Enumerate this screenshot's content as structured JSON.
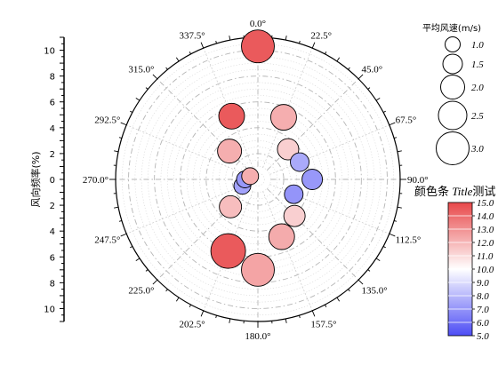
{
  "chart_data": {
    "type": "polar-bubble",
    "radial_axis": {
      "label": "风向频率(%)",
      "range": [
        0,
        11
      ],
      "tick_labels": [
        "0",
        "2",
        "4",
        "6",
        "8",
        "10"
      ],
      "tick_values": [
        0,
        2,
        4,
        6,
        8,
        10
      ]
    },
    "angle_labels": [
      "0.0°",
      "22.5°",
      "45.0°",
      "67.5°",
      "90.0°",
      "112.5°",
      "135.0°",
      "157.5°",
      "180.0°",
      "202.5°",
      "225.0°",
      "247.5°",
      "270.0°",
      "292.5°",
      "315.0°",
      "337.5°"
    ],
    "angles": [
      0,
      22.5,
      45,
      67.5,
      90,
      112.5,
      135,
      157.5,
      180,
      202.5,
      225,
      247.5,
      270,
      292.5,
      315,
      337.5
    ],
    "size_legend": {
      "title": "平均风速(m/s)",
      "labels": [
        "1.0",
        "1.5",
        "2.0",
        "2.5",
        "3.0"
      ],
      "values": [
        1.0,
        1.5,
        2.0,
        2.5,
        3.0
      ]
    },
    "colorbar": {
      "title": "颜色条 Title测试",
      "title_plain": "颜色条 ",
      "title_italic": "Title",
      "title_tail": "测试",
      "labels": [
        "15.0",
        "14.0",
        "13.0",
        "12.0",
        "11.0",
        "10.0",
        "9.0",
        "8.0",
        "7.0",
        "6.0",
        "5.0"
      ],
      "range": [
        5,
        15
      ],
      "colors": {
        "low": "#4d4df5",
        "mid": "#ffffff",
        "high": "#e8484a"
      }
    },
    "points": [
      {
        "direction": 0,
        "frequency": 10.3,
        "speed": 3.0,
        "color_value": 14.5
      },
      {
        "direction": 22.5,
        "frequency": 5.2,
        "speed": 2.2,
        "color_value": 12.2
      },
      {
        "direction": 45,
        "frequency": 3.3,
        "speed": 1.7,
        "color_value": 11.3
      },
      {
        "direction": 67.5,
        "frequency": 3.5,
        "speed": 1.4,
        "color_value": 7.6
      },
      {
        "direction": 90,
        "frequency": 4.2,
        "speed": 1.6,
        "color_value": 7.1
      },
      {
        "direction": 112.5,
        "frequency": 3.0,
        "speed": 1.4,
        "color_value": 7.0
      },
      {
        "direction": 135,
        "frequency": 4.0,
        "speed": 1.7,
        "color_value": 11.3
      },
      {
        "direction": 157.5,
        "frequency": 4.8,
        "speed": 2.2,
        "color_value": 12.3
      },
      {
        "direction": 180,
        "frequency": 7.0,
        "speed": 3.0,
        "color_value": 12.5
      },
      {
        "direction": 202.5,
        "frequency": 6.0,
        "speed": 3.2,
        "color_value": 14.5
      },
      {
        "direction": 225,
        "frequency": 3.0,
        "speed": 1.8,
        "color_value": 11.8
      },
      {
        "direction": 247.5,
        "frequency": 1.3,
        "speed": 1.2,
        "color_value": 7.4
      },
      {
        "direction": 270,
        "frequency": 1.0,
        "speed": 1.2,
        "color_value": 7.1
      },
      {
        "direction": 292.5,
        "frequency": 0.65,
        "speed": 1.2,
        "color_value": 12.2
      },
      {
        "direction": 315,
        "frequency": 3.1,
        "speed": 2.0,
        "color_value": 12.2
      },
      {
        "direction": 337.5,
        "frequency": 5.3,
        "speed": 2.2,
        "color_value": 14.5
      }
    ],
    "grid": true
  }
}
